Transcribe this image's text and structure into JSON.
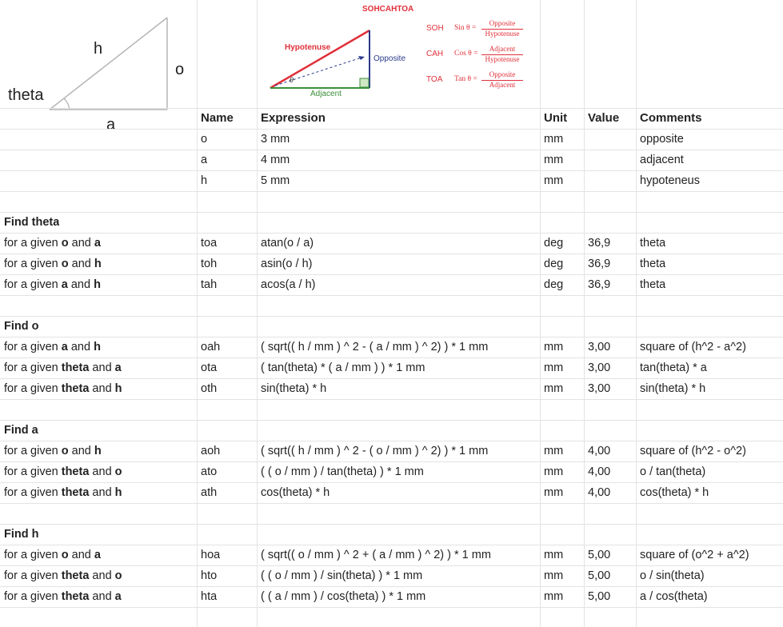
{
  "diagram": {
    "labels": {
      "h": "h",
      "o": "o",
      "theta": "theta",
      "a": "a"
    }
  },
  "sohcahtoa": {
    "title": "SOHCAHTOA",
    "hypotenuse": "Hypotenuse",
    "opposite": "Opposite",
    "adjacent": "Adjacent",
    "theta_symbol": "θ",
    "rows": [
      {
        "key": "SOH",
        "fn": "Sin θ =",
        "num": "Opposite",
        "den": "Hypotenuse"
      },
      {
        "key": "CAH",
        "fn": "Cos θ =",
        "num": "Adjacent",
        "den": "Hypotenuse"
      },
      {
        "key": "TOA",
        "fn": "Tan θ =",
        "num": "Opposite",
        "den": "Adjacent"
      }
    ]
  },
  "header": {
    "name": "Name",
    "expression": "Expression",
    "unit": "Unit",
    "value": "Value",
    "comments": "Comments"
  },
  "inputs": [
    {
      "name": "o",
      "expression": "3 mm",
      "unit": "mm",
      "value": "",
      "comment": "opposite"
    },
    {
      "name": "a",
      "expression": "4 mm",
      "unit": "mm",
      "value": "",
      "comment": "adjacent"
    },
    {
      "name": "h",
      "expression": "5 mm",
      "unit": "mm",
      "value": "",
      "comment": "hypoteneus"
    }
  ],
  "sections": [
    {
      "title": "Find theta",
      "rows": [
        {
          "pre": "for a given ",
          "b1": "o",
          "mid": " and ",
          "b2": "a",
          "name": "toa",
          "expression": "atan(o / a)",
          "unit": "deg",
          "value": "36,9",
          "comment": "theta"
        },
        {
          "pre": "for a given ",
          "b1": "o",
          "mid": " and ",
          "b2": "h",
          "name": "toh",
          "expression": "asin(o / h)",
          "unit": "deg",
          "value": "36,9",
          "comment": "theta"
        },
        {
          "pre": "for a given ",
          "b1": "a",
          "mid": " and ",
          "b2": "h",
          "name": "tah",
          "expression": "acos(a / h)",
          "unit": "deg",
          "value": "36,9",
          "comment": "theta"
        }
      ]
    },
    {
      "title": "Find o",
      "rows": [
        {
          "pre": "for a given ",
          "b1": "a",
          "mid": " and ",
          "b2": "h",
          "name": "oah",
          "expression": "( sqrt(( h / mm ) ^ 2 - ( a / mm ) ^ 2) ) * 1 mm",
          "unit": "mm",
          "value": "3,00",
          "comment": "square of (h^2 - a^2)"
        },
        {
          "pre": "for a given ",
          "b1": "theta",
          "mid": " and ",
          "b2": "a",
          "name": "ota",
          "expression": "( tan(theta) * ( a / mm ) ) * 1 mm",
          "unit": "mm",
          "value": "3,00",
          "comment": "tan(theta) * a"
        },
        {
          "pre": "for a given ",
          "b1": "theta",
          "mid": " and ",
          "b2": "h",
          "name": "oth",
          "expression": "sin(theta) * h",
          "unit": "mm",
          "value": "3,00",
          "comment": "sin(theta) * h"
        }
      ]
    },
    {
      "title": "Find a",
      "rows": [
        {
          "pre": "for a given ",
          "b1": "o",
          "mid": " and ",
          "b2": "h",
          "name": "aoh",
          "expression": "( sqrt(( h / mm ) ^ 2 - ( o / mm ) ^ 2) ) * 1 mm",
          "unit": "mm",
          "value": "4,00",
          "comment": "square of (h^2 - o^2)"
        },
        {
          "pre": "for a given ",
          "b1": "theta",
          "mid": " and ",
          "b2": "o",
          "name": "ato",
          "expression": "( ( o / mm ) / tan(theta) ) * 1 mm",
          "unit": "mm",
          "value": "4,00",
          "comment": "o / tan(theta)"
        },
        {
          "pre": "for a given ",
          "b1": "theta",
          "mid": " and ",
          "b2": "h",
          "name": "ath",
          "expression": "cos(theta) * h",
          "unit": "mm",
          "value": "4,00",
          "comment": "cos(theta) * h"
        }
      ]
    },
    {
      "title": "Find h",
      "rows": [
        {
          "pre": "for a given ",
          "b1": "o",
          "mid": " and ",
          "b2": "a",
          "name": "hoa",
          "expression": "( sqrt(( o / mm ) ^ 2 + ( a / mm ) ^ 2) ) * 1 mm",
          "unit": "mm",
          "value": "5,00",
          "comment": "square of (o^2 + a^2)"
        },
        {
          "pre": "for a given ",
          "b1": "theta",
          "mid": " and ",
          "b2": "o",
          "name": "hto",
          "expression": "( ( o / mm ) / sin(theta) ) * 1 mm",
          "unit": "mm",
          "value": "5,00",
          "comment": "o / sin(theta)"
        },
        {
          "pre": "for a given ",
          "b1": "theta",
          "mid": " and ",
          "b2": "a",
          "name": "hta",
          "expression": "( ( a / mm ) / cos(theta) ) * 1 mm",
          "unit": "mm",
          "value": "5,00",
          "comment": "a / cos(theta)"
        }
      ]
    }
  ]
}
